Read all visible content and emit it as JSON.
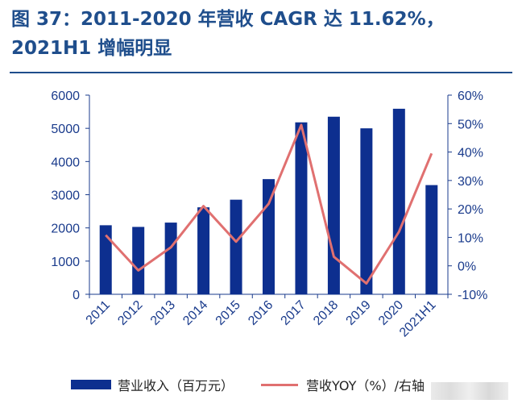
{
  "title": "图 37：2011-2020 年营收 CAGR 达 11.62%，2021H1 增幅明显",
  "colors": {
    "bar": "#0d2f8f",
    "line": "#e07070",
    "axis": "#1a3b8c",
    "title": "#1f4e8c"
  },
  "chart_data": {
    "type": "bar",
    "categories": [
      "2011",
      "2012",
      "2013",
      "2014",
      "2015",
      "2016",
      "2017",
      "2018",
      "2019",
      "2020",
      "2021H1"
    ],
    "series": [
      {
        "name": "营业收入（百万元）",
        "type": "bar",
        "axis": "left",
        "values": [
          2080,
          2030,
          2160,
          2620,
          2850,
          3470,
          5180,
          5350,
          5000,
          5590,
          3290
        ]
      },
      {
        "name": "营收YOY（%）/右轴",
        "type": "line",
        "axis": "right",
        "values": [
          10.8,
          -1.6,
          6.5,
          21.0,
          8.5,
          21.8,
          49.5,
          3.2,
          -6.2,
          12.0,
          39.5
        ]
      }
    ],
    "y_left": {
      "lim": [
        0,
        6000
      ],
      "ticks": [
        "0",
        "1000",
        "2000",
        "3000",
        "4000",
        "5000",
        "6000"
      ]
    },
    "y_right": {
      "lim": [
        -10,
        60
      ],
      "ticks": [
        "-10%",
        "0%",
        "10%",
        "20%",
        "30%",
        "40%",
        "50%",
        "60%"
      ]
    },
    "legend": "bottom",
    "grid": false
  },
  "legend": {
    "bar_label": "营业收入（百万元）",
    "line_label": "营收YOY（%）/右轴"
  }
}
